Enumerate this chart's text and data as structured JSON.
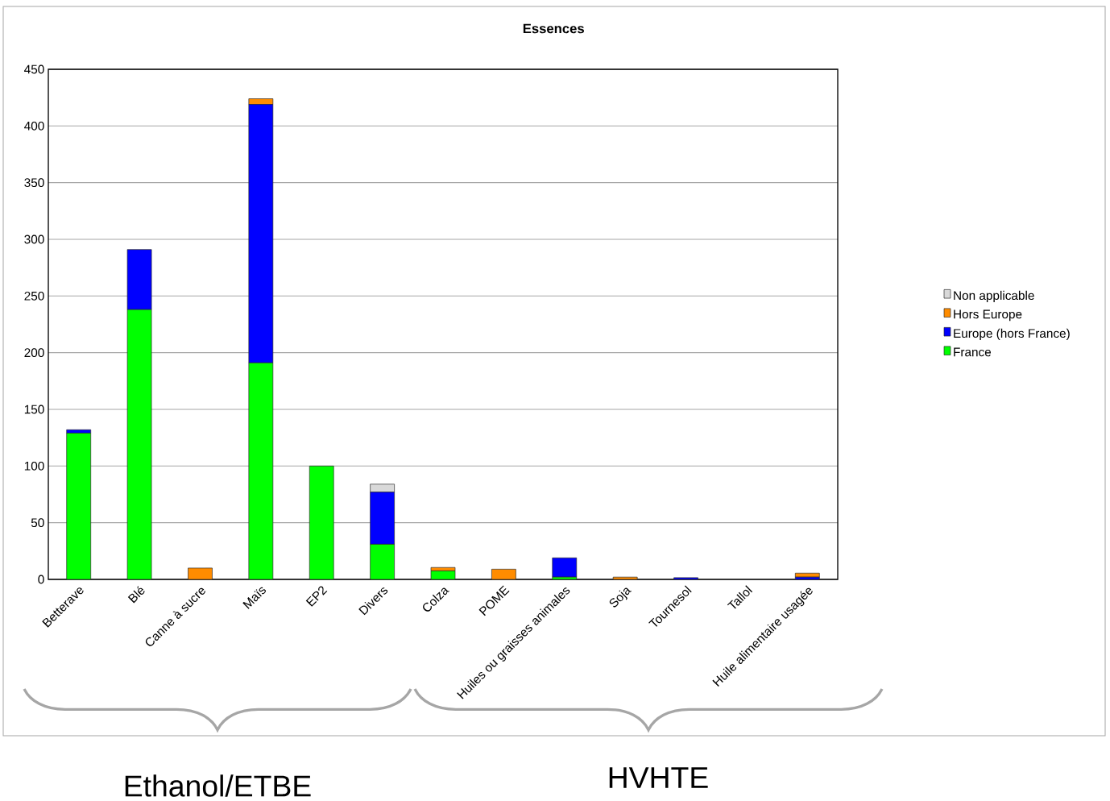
{
  "chart_data": {
    "type": "bar",
    "title": "Essences",
    "stacked": true,
    "categories": [
      "Betterave",
      "Blé",
      "Canne à sucre",
      "Maïs",
      "EP2",
      "Divers",
      "Colza",
      "POME",
      "Huiles ou graisses animales",
      "Soja",
      "Tournesol",
      "Tallol",
      "Huile alimentaire usagée"
    ],
    "series": [
      {
        "name": "France",
        "color": "#00ff00",
        "values": [
          129,
          238,
          0,
          191,
          100,
          31,
          7.5,
          0,
          2,
          0,
          0,
          0,
          0
        ]
      },
      {
        "name": "Europe (hors France)",
        "color": "#0000ff",
        "values": [
          3,
          53,
          0,
          228,
          0,
          46,
          0,
          0,
          17,
          0,
          1.5,
          null,
          2
        ]
      },
      {
        "name": "Hors Europe",
        "color": "#ff8c00",
        "values": [
          0,
          0,
          10,
          5,
          0,
          0,
          3,
          9,
          0,
          2,
          0,
          0,
          3.5
        ]
      },
      {
        "name": "Non applicable",
        "color": "#d9d9d9",
        "values": [
          0,
          0,
          0,
          0,
          0,
          7,
          0,
          0,
          0,
          0,
          0,
          0,
          0
        ]
      }
    ],
    "ylim": [
      0,
      450
    ],
    "yticks": [
      0,
      50,
      100,
      150,
      200,
      250,
      300,
      350,
      400,
      450
    ],
    "grid": "y",
    "legend": "right",
    "annotations": [
      "Ethanol/ETBE",
      "HVHTE"
    ]
  }
}
